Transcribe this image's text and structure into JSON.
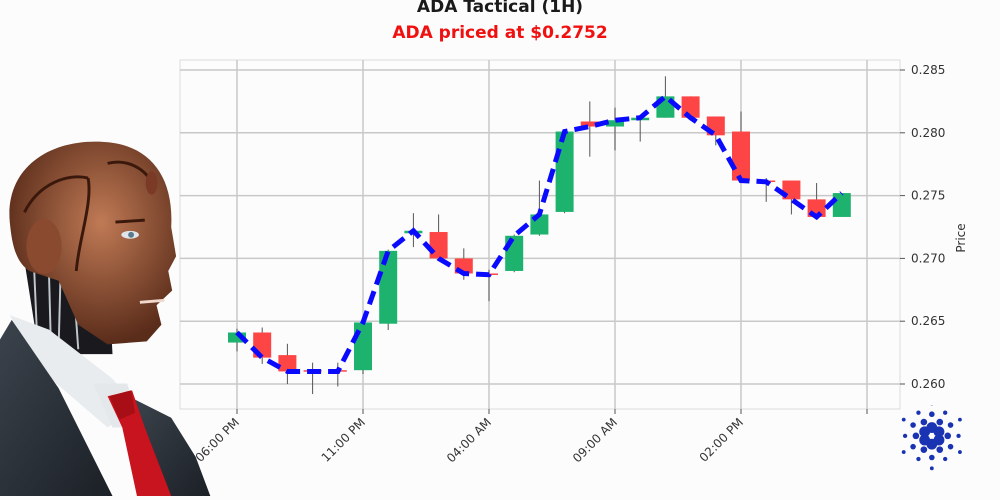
{
  "header": {
    "title": "ADA Tactical (1H)",
    "subtitle": "ADA priced at $0.2752",
    "subtitle_color": "#f01010"
  },
  "icons": {
    "robot_illustration": "robot-businessman-illustration",
    "brand_logo": "cardano-logo-icon"
  },
  "colors": {
    "up": "#1db36e",
    "down": "#fd4545",
    "trend": "#0a0aff",
    "grid": "#c8c8c8",
    "logo": "#1a33b3"
  },
  "chart_data": {
    "type": "candlestick",
    "title": "ADA Tactical (1H)",
    "subtitle": "ADA priced at $0.2752",
    "xlabel": "",
    "ylabel": "Price",
    "ylim": [
      0.2585,
      0.286
    ],
    "yticks": [
      0.26,
      0.265,
      0.27,
      0.275,
      0.28,
      0.285
    ],
    "ytick_labels": [
      "0.260",
      "0.265",
      "0.270",
      "0.275",
      "0.280",
      "0.285"
    ],
    "xtick_labels": [
      "06:00 PM",
      "11:00 PM",
      "04:00 AM",
      "09:00 AM",
      "02:00 PM",
      ""
    ],
    "xtick_index": [
      0,
      5,
      10,
      15,
      20,
      25
    ],
    "grid": true,
    "y_axis_side": "right",
    "x": [
      "06:00 PM",
      "07:00 PM",
      "08:00 PM",
      "09:00 PM",
      "10:00 PM",
      "11:00 PM",
      "12:00 AM",
      "01:00 AM",
      "02:00 AM",
      "03:00 AM",
      "04:00 AM",
      "05:00 AM",
      "06:00 AM",
      "07:00 AM",
      "08:00 AM",
      "09:00 AM",
      "10:00 AM",
      "11:00 AM",
      "12:00 PM",
      "01:00 PM",
      "02:00 PM",
      "03:00 PM",
      "04:00 PM",
      "05:00 PM",
      "06:00 PM"
    ],
    "open": [
      0.2633,
      0.2641,
      0.2623,
      0.2611,
      0.2611,
      0.2611,
      0.2648,
      0.272,
      0.2721,
      0.27,
      0.2688,
      0.269,
      0.2719,
      0.2737,
      0.2809,
      0.2805,
      0.281,
      0.2812,
      0.2829,
      0.2813,
      0.2801,
      0.2762,
      0.2762,
      0.2747,
      0.2733
    ],
    "high": [
      0.2644,
      0.2645,
      0.2632,
      0.2617,
      0.2617,
      0.2649,
      0.2707,
      0.2736,
      0.2735,
      0.2708,
      0.2691,
      0.2719,
      0.2762,
      0.2802,
      0.2825,
      0.282,
      0.2813,
      0.2845,
      0.2829,
      0.2813,
      0.2817,
      0.2764,
      0.2762,
      0.276,
      0.2752
    ],
    "low": [
      0.2626,
      0.2616,
      0.26,
      0.2592,
      0.2598,
      0.2608,
      0.2643,
      0.2709,
      0.27,
      0.2683,
      0.2666,
      0.2689,
      0.2718,
      0.2736,
      0.2781,
      0.2786,
      0.2793,
      0.2812,
      0.2812,
      0.279,
      0.2762,
      0.2745,
      0.2735,
      0.2733,
      0.2733
    ],
    "close": [
      0.2641,
      0.2621,
      0.261,
      0.261,
      0.261,
      0.2649,
      0.2706,
      0.2722,
      0.27,
      0.2688,
      0.2687,
      0.2718,
      0.2735,
      0.2801,
      0.2805,
      0.281,
      0.2812,
      0.2829,
      0.2812,
      0.2798,
      0.2762,
      0.2761,
      0.2747,
      0.2733,
      0.2752
    ],
    "trend_line": {
      "style": "dashed",
      "color": "#0a0aff",
      "values": [
        0.2641,
        0.2621,
        0.261,
        0.261,
        0.261,
        0.2649,
        0.2706,
        0.2722,
        0.27,
        0.2688,
        0.2687,
        0.2718,
        0.2735,
        0.2801,
        0.2805,
        0.281,
        0.2812,
        0.2829,
        0.2812,
        0.2798,
        0.2762,
        0.2761,
        0.2747,
        0.2733,
        0.2752
      ]
    },
    "last_price": 0.2752
  }
}
